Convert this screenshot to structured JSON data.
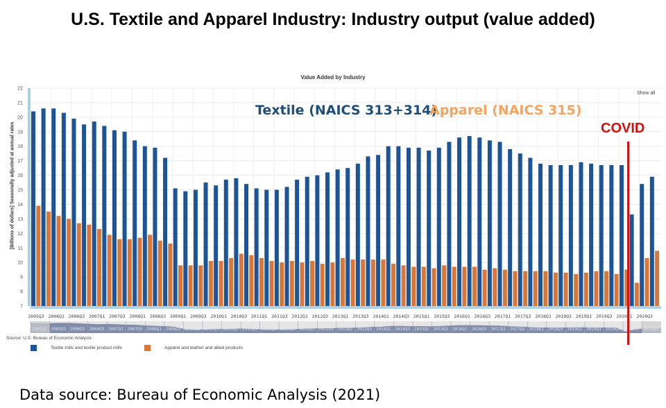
{
  "page_title": "U.S. Textile and Apparel Industry: Industry output (value added)",
  "chart_title": "Value Added by Industry",
  "show_all_label": "Show all",
  "source_note": "Source: U.S. Bureau of Economic Analysis",
  "footer": "Data source: Bureau of Economic Analysis (2021)",
  "annotations": {
    "textile": "Textile (NAICS 313+314)",
    "apparel": "Apparel (NAICS 315)",
    "covid": "COVID"
  },
  "colors": {
    "textile": "#1c5496",
    "apparel": "#d9773a",
    "covid": "#d40f0f",
    "textile_label": "#1f4e79",
    "apparel_label": "#f4a460"
  },
  "navigator_labels": [
    "2005Q1",
    "2005Q3",
    "2006Q1",
    "2006Q3",
    "2007Q1",
    "2007Q3",
    "2008Q1",
    "2008Q3",
    "2009Q1",
    "2009Q3",
    "2010Q1",
    "2010Q3",
    "2011Q1",
    "2011Q3",
    "2012Q1",
    "2012Q3",
    "2013Q1",
    "2013Q3",
    "2014Q1",
    "2014Q3",
    "2015Q1",
    "2015Q3",
    "2016Q1",
    "2016Q3",
    "2017Q1",
    "2017Q3",
    "2018Q1",
    "2018Q3",
    "2019Q1",
    "2019Q3",
    "2020Q1",
    "2020Q3",
    "2021Q1"
  ],
  "chart_data": {
    "type": "bar",
    "title": "Value Added by Industry",
    "xlabel": "",
    "ylabel": "[Billions of dollars] Seasonally adjusted at annual rates",
    "ylim": [
      7,
      22
    ],
    "yticks": [
      7,
      8,
      9,
      10,
      11,
      12,
      13,
      14,
      15,
      16,
      17,
      18,
      19,
      20,
      21,
      22
    ],
    "grid": true,
    "legend_position": "bottom-left",
    "covid_marker_at": "2020Q1/2020Q2",
    "x_tick_labels": [
      "2005Q3",
      "2006Q1",
      "2006Q3",
      "2007Q1",
      "2007Q3",
      "2008Q1",
      "2008Q3",
      "2009Q1",
      "2009Q3",
      "2010Q1",
      "2010Q3",
      "2011Q1",
      "2011Q3",
      "2012Q1",
      "2012Q3",
      "2013Q1",
      "2013Q3",
      "2014Q1",
      "2014Q3",
      "2015Q1",
      "2015Q3",
      "2016Q1",
      "2016Q3",
      "2017Q1",
      "2017Q3",
      "2018Q1",
      "2018Q3",
      "2019Q1",
      "2019Q3",
      "2020Q1",
      "2020Q3"
    ],
    "categories": [
      "2005Q3",
      "2005Q4",
      "2006Q1",
      "2006Q2",
      "2006Q3",
      "2006Q4",
      "2007Q1",
      "2007Q2",
      "2007Q3",
      "2007Q4",
      "2008Q1",
      "2008Q2",
      "2008Q3",
      "2008Q4",
      "2009Q1",
      "2009Q2",
      "2009Q3",
      "2009Q4",
      "2010Q1",
      "2010Q2",
      "2010Q3",
      "2010Q4",
      "2011Q1",
      "2011Q2",
      "2011Q3",
      "2011Q4",
      "2012Q1",
      "2012Q2",
      "2012Q3",
      "2012Q4",
      "2013Q1",
      "2013Q2",
      "2013Q3",
      "2013Q4",
      "2014Q1",
      "2014Q2",
      "2014Q3",
      "2014Q4",
      "2015Q1",
      "2015Q2",
      "2015Q3",
      "2015Q4",
      "2016Q1",
      "2016Q2",
      "2016Q3",
      "2016Q4",
      "2017Q1",
      "2017Q2",
      "2017Q3",
      "2017Q4",
      "2018Q1",
      "2018Q2",
      "2018Q3",
      "2018Q4",
      "2019Q1",
      "2019Q2",
      "2019Q3",
      "2019Q4",
      "2020Q1",
      "2020Q2",
      "2020Q3",
      "2020Q4"
    ],
    "series": [
      {
        "name": "Textile mills and textile product mills",
        "values": [
          20.4,
          20.6,
          20.6,
          20.3,
          19.9,
          19.5,
          19.7,
          19.4,
          19.1,
          19.0,
          18.4,
          18.0,
          17.9,
          17.2,
          15.1,
          14.9,
          15.0,
          15.5,
          15.3,
          15.7,
          15.8,
          15.4,
          15.1,
          15.0,
          15.0,
          15.2,
          15.7,
          15.9,
          16.0,
          16.2,
          16.4,
          16.5,
          16.8,
          17.3,
          17.4,
          18.0,
          18.0,
          17.9,
          17.9,
          17.7,
          17.9,
          18.3,
          18.6,
          18.7,
          18.6,
          18.4,
          18.3,
          17.8,
          17.5,
          17.2,
          16.8,
          16.7,
          16.7,
          16.7,
          16.9,
          16.8,
          16.7,
          16.7,
          16.7,
          13.3,
          15.4,
          15.9
        ]
      },
      {
        "name": "Apparel and leather and allied products",
        "values": [
          13.9,
          13.5,
          13.2,
          13.0,
          12.7,
          12.6,
          12.3,
          11.9,
          11.6,
          11.6,
          11.7,
          11.9,
          11.5,
          11.3,
          9.8,
          9.8,
          9.8,
          10.1,
          10.1,
          10.3,
          10.6,
          10.5,
          10.3,
          10.1,
          10.0,
          10.1,
          10.0,
          10.1,
          9.9,
          10.0,
          10.3,
          10.2,
          10.2,
          10.2,
          10.2,
          9.9,
          9.8,
          9.7,
          9.7,
          9.6,
          9.8,
          9.7,
          9.7,
          9.7,
          9.5,
          9.6,
          9.5,
          9.4,
          9.4,
          9.4,
          9.4,
          9.3,
          9.3,
          9.2,
          9.3,
          9.4,
          9.4,
          9.2,
          9.5,
          8.6,
          10.3,
          10.8
        ]
      }
    ]
  }
}
